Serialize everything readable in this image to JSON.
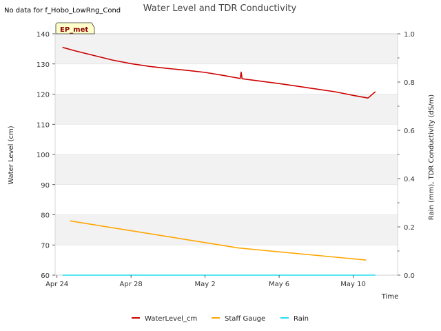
{
  "no_data_note": "No data for f_Hobo_LowRng_Cond",
  "site_label": "EP_met",
  "chart_data": {
    "type": "line",
    "title": "Water Level and TDR Conductivity",
    "xlabel": "Time",
    "ylabel": "Water Level (cm)",
    "y2label": "Rain (mm), TDR Conductivity (dS/m)",
    "ylim": [
      60,
      140
    ],
    "y2lim": [
      0.0,
      1.0
    ],
    "xlim": [
      -0.1,
      18.4
    ],
    "x_ticks": [
      {
        "day": 0,
        "label": "Apr 24"
      },
      {
        "day": 4,
        "label": "Apr 28"
      },
      {
        "day": 8,
        "label": "May 2"
      },
      {
        "day": 12,
        "label": "May 6"
      },
      {
        "day": 16,
        "label": "May 10"
      }
    ],
    "y_ticks": [
      "60",
      "70",
      "80",
      "90",
      "100",
      "110",
      "120",
      "130",
      "140"
    ],
    "y2_ticks": [
      "0.0",
      "0.2",
      "0.4",
      "0.6",
      "0.8",
      "1.0"
    ],
    "grid": true,
    "legend_position": "bottom",
    "series": [
      {
        "name": "WaterLevel_cm",
        "axis": "left",
        "color": "#cc0000",
        "x": [
          0.3,
          1,
          2,
          3,
          4,
          5,
          6,
          7,
          8,
          9,
          9.6,
          9.9,
          9.95,
          10,
          11,
          12,
          13,
          14,
          15,
          16,
          16.8,
          17.2
        ],
        "y": [
          135.5,
          134.3,
          132.8,
          131.3,
          130.1,
          129.2,
          128.5,
          127.9,
          127.2,
          126.2,
          125.5,
          125.2,
          127.3,
          125.1,
          124.3,
          123.5,
          122.6,
          121.7,
          120.8,
          119.6,
          118.7,
          120.8
        ]
      },
      {
        "name": "Staff Gauge",
        "axis": "left",
        "color": "#ffa500",
        "x": [
          0.7,
          9.8,
          16.7
        ],
        "y": [
          78.0,
          69.0,
          65.0
        ]
      },
      {
        "name": "Rain",
        "axis": "right",
        "color": "#22ddee",
        "x": [
          0.3,
          17.2
        ],
        "y": [
          0.0,
          0.0
        ]
      }
    ]
  }
}
